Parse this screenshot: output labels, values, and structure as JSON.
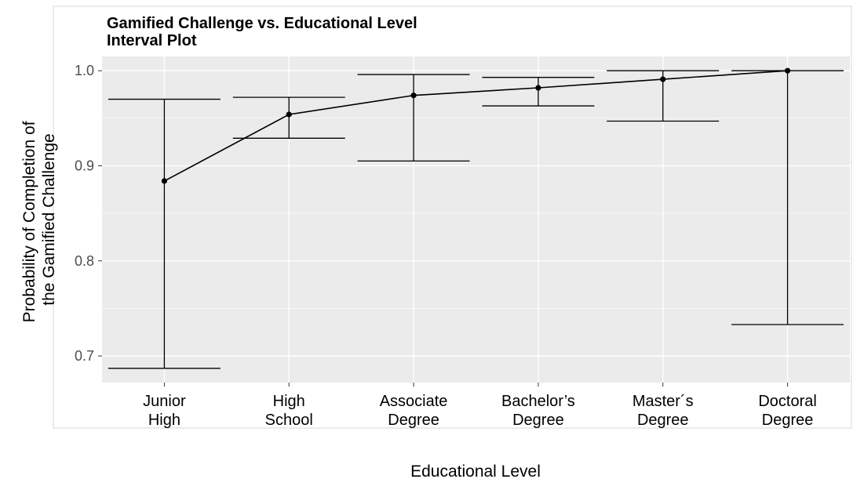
{
  "chart_data": {
    "type": "interval",
    "title": "Gamified Challenge vs. Educational Level",
    "subtitle": "Interval Plot",
    "xlabel": "Educational Level",
    "ylabel": [
      "Probability of Completion of",
      "the Gamified Challenge"
    ],
    "ylim": [
      0.672,
      1.015
    ],
    "yticks": [
      0.7,
      0.8,
      0.9,
      1.0
    ],
    "ytick_labels": [
      "0.7",
      "0.8",
      "0.9",
      "1.0"
    ],
    "grid": true,
    "categories": [
      {
        "lines": [
          "Junior",
          "High"
        ]
      },
      {
        "lines": [
          "High",
          "School"
        ]
      },
      {
        "lines": [
          "Associate",
          "Degree"
        ]
      },
      {
        "lines": [
          "Bachelor’s",
          "Degree"
        ]
      },
      {
        "lines": [
          "Master´s",
          "Degree"
        ]
      },
      {
        "lines": [
          "Doctoral",
          "Degree"
        ]
      }
    ],
    "points": [
      {
        "estimate": 0.884,
        "lower": 0.687,
        "upper": 0.97
      },
      {
        "estimate": 0.954,
        "lower": 0.929,
        "upper": 0.972
      },
      {
        "estimate": 0.974,
        "lower": 0.905,
        "upper": 0.996
      },
      {
        "estimate": 0.982,
        "lower": 0.963,
        "upper": 0.993
      },
      {
        "estimate": 0.991,
        "lower": 0.947,
        "upper": 1.0
      },
      {
        "estimate": 1.0,
        "lower": 0.733,
        "upper": 1.0
      }
    ],
    "colors": {
      "panel": "#ebebeb",
      "grid": "#ffffff",
      "ink": "#000000"
    }
  }
}
